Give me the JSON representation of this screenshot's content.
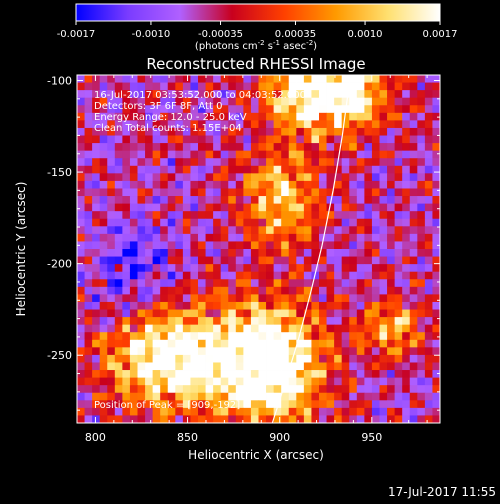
{
  "colorbar": {
    "tick_labels": [
      "-0.0017",
      "-0.0010",
      "-0.00035",
      "0.00035",
      "0.0010",
      "0.0017"
    ],
    "tick_values": [
      -0.0017,
      -0.001,
      -0.00035,
      0.00035,
      0.001,
      0.0017
    ],
    "range": [
      -0.0017,
      0.0017
    ],
    "units_parts": {
      "a": "(photons cm",
      "exp1": "-2",
      "b": " s",
      "exp2": "-1",
      "c": " asec",
      "exp3": "-2",
      "d": ")"
    },
    "colors": [
      "#0000ff",
      "#7a3cff",
      "#b060ff",
      "#c8001e",
      "#ff4000",
      "#ff9a00",
      "#ffe070",
      "#ffffff"
    ]
  },
  "chart_data": {
    "type": "heatmap",
    "title": "Reconstructed RHESSI Image",
    "xlabel": "Heliocentric X (arcsec)",
    "ylabel": "Heliocentric Y (arcsec)",
    "xlim": [
      790,
      987
    ],
    "ylim": [
      -287,
      -97
    ],
    "x_ticks": [
      800,
      850,
      900,
      950
    ],
    "y_ticks": [
      -100,
      -150,
      -200,
      -250
    ],
    "x_tick_labels": [
      "800",
      "850",
      "900",
      "950"
    ],
    "y_tick_labels": [
      "-100",
      "-150",
      "-200",
      "-250"
    ],
    "annotations": [
      "16-Jul-2017 03:53:52.000 to 04:03:52.000",
      "Detectors: 3F 6F 8F, Att 0",
      "Energy Range: 12.0 - 25.0 keV",
      "Clean    Total counts: 1.15E+04"
    ],
    "peak_label": "Position of Peak = [909,-192]",
    "peak": [
      909,
      -192
    ],
    "limb": [
      [
        896,
        -287
      ],
      [
        903,
        -265
      ],
      [
        910,
        -242
      ],
      [
        917,
        -215
      ],
      [
        923,
        -190
      ],
      [
        929,
        -160
      ],
      [
        934,
        -130
      ],
      [
        938,
        -100
      ],
      [
        939,
        -97
      ]
    ],
    "map": {
      "nx": 48,
      "ny": 46,
      "seed": 7,
      "features": [
        {
          "x": 840,
          "y": -252,
          "sx": 22,
          "sy": 18,
          "amp": 0.85
        },
        {
          "x": 895,
          "y": -255,
          "sx": 20,
          "sy": 22,
          "amp": 0.9
        },
        {
          "x": 925,
          "y": -105,
          "sx": 20,
          "sy": 16,
          "amp": 0.9
        },
        {
          "x": 900,
          "y": -165,
          "sx": 14,
          "sy": 18,
          "amp": 0.5
        },
        {
          "x": 960,
          "y": -235,
          "sx": 12,
          "sy": 10,
          "amp": 0.45
        },
        {
          "x": 820,
          "y": -205,
          "sx": 14,
          "sy": 20,
          "amp": -0.25
        }
      ]
    }
  },
  "timestamp": "17-Jul-2017 11:55"
}
